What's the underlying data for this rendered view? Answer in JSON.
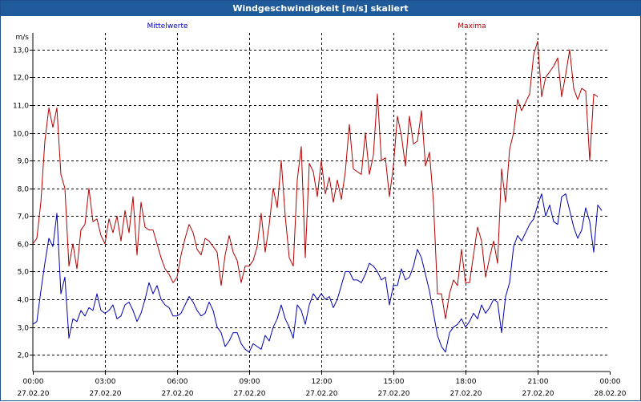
{
  "window": {
    "title": "Windgeschwindigkeit [m/s] skaliert"
  },
  "colors": {
    "mittel": "#0000b4",
    "maxima": "#b40000",
    "titlebar": "#1f5b9b"
  },
  "chart_data": {
    "type": "line",
    "title": "Windgeschwindigkeit [m/s] skaliert",
    "ylabel": "m/s",
    "ylim": [
      1.4,
      13.6
    ],
    "yticks": [
      2.0,
      3.0,
      4.0,
      5.0,
      6.0,
      7.0,
      8.0,
      9.0,
      10.0,
      11.0,
      12.0,
      13.0
    ],
    "ytick_labels": [
      "2,0",
      "3,0",
      "4,0",
      "5,0",
      "6,0",
      "7,0",
      "8,0",
      "9,0",
      "10,0",
      "11,0",
      "12,0",
      "13,0"
    ],
    "xlim": [
      "2020-02-27T00:00",
      "2020-02-28T00:00"
    ],
    "xticks": [
      {
        "time": "00:00",
        "date": "27.02.20"
      },
      {
        "time": "03:00",
        "date": "27.02.20"
      },
      {
        "time": "06:00",
        "date": "27.02.20"
      },
      {
        "time": "09:00",
        "date": "27.02.20"
      },
      {
        "time": "12:00",
        "date": "27.02.20"
      },
      {
        "time": "15:00",
        "date": "27.02.20"
      },
      {
        "time": "18:00",
        "date": "27.02.20"
      },
      {
        "time": "21:00",
        "date": "27.02.20"
      },
      {
        "time": "00:00",
        "date": "28.02.20"
      }
    ],
    "grid": true,
    "series": [
      {
        "name": "Mittelwerte",
        "color": "#0000b4",
        "points": [
          [
            "00:00",
            3.1
          ],
          [
            "00:10",
            3.2
          ],
          [
            "00:20",
            4.3
          ],
          [
            "00:30",
            5.3
          ],
          [
            "00:40",
            6.2
          ],
          [
            "00:50",
            5.9
          ],
          [
            "01:00",
            7.1
          ],
          [
            "01:10",
            4.2
          ],
          [
            "01:20",
            4.8
          ],
          [
            "01:30",
            2.6
          ],
          [
            "01:40",
            3.3
          ],
          [
            "01:50",
            3.2
          ],
          [
            "02:00",
            3.6
          ],
          [
            "02:10",
            3.4
          ],
          [
            "02:20",
            3.7
          ],
          [
            "02:30",
            3.6
          ],
          [
            "02:40",
            4.2
          ],
          [
            "02:50",
            3.6
          ],
          [
            "03:00",
            3.5
          ],
          [
            "03:10",
            3.6
          ],
          [
            "03:20",
            3.8
          ],
          [
            "03:30",
            3.3
          ],
          [
            "03:40",
            3.4
          ],
          [
            "03:50",
            3.8
          ],
          [
            "04:00",
            3.9
          ],
          [
            "04:10",
            3.6
          ],
          [
            "04:20",
            3.2
          ],
          [
            "04:30",
            3.5
          ],
          [
            "04:40",
            4.0
          ],
          [
            "04:50",
            4.6
          ],
          [
            "05:00",
            4.2
          ],
          [
            "05:10",
            4.5
          ],
          [
            "05:20",
            4.0
          ],
          [
            "05:30",
            3.8
          ],
          [
            "05:40",
            3.7
          ],
          [
            "05:50",
            3.4
          ],
          [
            "06:00",
            3.4
          ],
          [
            "06:10",
            3.5
          ],
          [
            "06:20",
            3.8
          ],
          [
            "06:30",
            4.1
          ],
          [
            "06:40",
            3.9
          ],
          [
            "06:50",
            3.6
          ],
          [
            "07:00",
            3.4
          ],
          [
            "07:10",
            3.5
          ],
          [
            "07:20",
            3.9
          ],
          [
            "07:30",
            3.6
          ],
          [
            "07:40",
            3.0
          ],
          [
            "07:50",
            2.8
          ],
          [
            "08:00",
            2.3
          ],
          [
            "08:10",
            2.5
          ],
          [
            "08:20",
            2.8
          ],
          [
            "08:30",
            2.8
          ],
          [
            "08:40",
            2.4
          ],
          [
            "08:50",
            2.2
          ],
          [
            "09:00",
            2.1
          ],
          [
            "09:10",
            2.4
          ],
          [
            "09:20",
            2.3
          ],
          [
            "09:30",
            2.2
          ],
          [
            "09:40",
            2.7
          ],
          [
            "09:50",
            2.5
          ],
          [
            "10:00",
            3.0
          ],
          [
            "10:10",
            3.3
          ],
          [
            "10:20",
            3.8
          ],
          [
            "10:30",
            3.3
          ],
          [
            "10:40",
            3.0
          ],
          [
            "10:50",
            2.6
          ],
          [
            "11:00",
            3.8
          ],
          [
            "11:10",
            3.6
          ],
          [
            "11:20",
            3.1
          ],
          [
            "11:30",
            3.8
          ],
          [
            "11:40",
            4.2
          ],
          [
            "11:50",
            4.0
          ],
          [
            "12:00",
            4.2
          ],
          [
            "12:10",
            4.0
          ],
          [
            "12:20",
            4.1
          ],
          [
            "12:30",
            3.7
          ],
          [
            "12:40",
            4.0
          ],
          [
            "12:50",
            4.5
          ],
          [
            "13:00",
            5.0
          ],
          [
            "13:10",
            5.0
          ],
          [
            "13:20",
            4.7
          ],
          [
            "13:30",
            4.7
          ],
          [
            "13:40",
            4.6
          ],
          [
            "13:50",
            4.9
          ],
          [
            "14:00",
            5.3
          ],
          [
            "14:10",
            5.2
          ],
          [
            "14:20",
            5.0
          ],
          [
            "14:30",
            4.7
          ],
          [
            "14:40",
            4.8
          ],
          [
            "14:50",
            3.8
          ],
          [
            "15:00",
            4.5
          ],
          [
            "15:10",
            4.5
          ],
          [
            "15:20",
            5.1
          ],
          [
            "15:30",
            4.7
          ],
          [
            "15:40",
            4.8
          ],
          [
            "15:50",
            5.2
          ],
          [
            "16:00",
            5.8
          ],
          [
            "16:10",
            5.5
          ],
          [
            "16:20",
            4.9
          ],
          [
            "16:30",
            4.3
          ],
          [
            "16:40",
            3.5
          ],
          [
            "16:50",
            2.7
          ],
          [
            "17:00",
            2.3
          ],
          [
            "17:10",
            2.1
          ],
          [
            "17:20",
            2.8
          ],
          [
            "17:30",
            3.0
          ],
          [
            "17:40",
            3.1
          ],
          [
            "17:50",
            3.3
          ],
          [
            "18:00",
            3.0
          ],
          [
            "18:10",
            3.2
          ],
          [
            "18:20",
            3.5
          ],
          [
            "18:30",
            3.3
          ],
          [
            "18:40",
            3.8
          ],
          [
            "18:50",
            3.5
          ],
          [
            "19:00",
            3.7
          ],
          [
            "19:10",
            4.0
          ],
          [
            "19:20",
            3.9
          ],
          [
            "19:30",
            2.8
          ],
          [
            "19:40",
            4.1
          ],
          [
            "19:50",
            4.6
          ],
          [
            "20:00",
            5.9
          ],
          [
            "20:10",
            6.3
          ],
          [
            "20:20",
            6.1
          ],
          [
            "20:30",
            6.4
          ],
          [
            "20:40",
            6.7
          ],
          [
            "20:50",
            6.9
          ],
          [
            "21:00",
            7.4
          ],
          [
            "21:10",
            7.8
          ],
          [
            "21:20",
            7.0
          ],
          [
            "21:30",
            7.4
          ],
          [
            "21:40",
            6.8
          ],
          [
            "21:50",
            6.7
          ],
          [
            "22:00",
            7.7
          ],
          [
            "22:10",
            7.8
          ],
          [
            "22:20",
            7.2
          ],
          [
            "22:30",
            6.6
          ],
          [
            "22:40",
            6.2
          ],
          [
            "22:50",
            6.5
          ],
          [
            "23:00",
            7.3
          ],
          [
            "23:10",
            6.8
          ],
          [
            "23:20",
            5.7
          ],
          [
            "23:30",
            7.4
          ],
          [
            "23:40",
            7.2
          ]
        ]
      },
      {
        "name": "Maxima",
        "color": "#b40000",
        "points": [
          [
            "00:00",
            6.0
          ],
          [
            "00:10",
            6.2
          ],
          [
            "00:20",
            7.5
          ],
          [
            "00:30",
            9.7
          ],
          [
            "00:40",
            10.9
          ],
          [
            "00:50",
            10.2
          ],
          [
            "01:00",
            10.9
          ],
          [
            "01:10",
            8.5
          ],
          [
            "01:20",
            8.0
          ],
          [
            "01:30",
            5.2
          ],
          [
            "01:40",
            6.0
          ],
          [
            "01:50",
            5.1
          ],
          [
            "02:00",
            6.5
          ],
          [
            "02:10",
            6.7
          ],
          [
            "02:20",
            8.0
          ],
          [
            "02:30",
            6.8
          ],
          [
            "02:40",
            6.9
          ],
          [
            "02:50",
            6.3
          ],
          [
            "03:00",
            6.0
          ],
          [
            "03:10",
            6.9
          ],
          [
            "03:20",
            6.4
          ],
          [
            "03:30",
            7.0
          ],
          [
            "03:40",
            6.1
          ],
          [
            "03:50",
            7.2
          ],
          [
            "04:00",
            6.4
          ],
          [
            "04:10",
            7.7
          ],
          [
            "04:20",
            5.6
          ],
          [
            "04:30",
            7.5
          ],
          [
            "04:40",
            6.6
          ],
          [
            "04:50",
            6.5
          ],
          [
            "05:00",
            6.5
          ],
          [
            "05:10",
            6.0
          ],
          [
            "05:20",
            5.5
          ],
          [
            "05:30",
            5.1
          ],
          [
            "05:40",
            4.9
          ],
          [
            "05:50",
            4.6
          ],
          [
            "06:00",
            4.8
          ],
          [
            "06:10",
            5.6
          ],
          [
            "06:20",
            6.2
          ],
          [
            "06:30",
            6.7
          ],
          [
            "06:40",
            6.4
          ],
          [
            "06:50",
            5.8
          ],
          [
            "07:00",
            5.6
          ],
          [
            "07:10",
            6.2
          ],
          [
            "07:20",
            6.1
          ],
          [
            "07:30",
            5.9
          ],
          [
            "07:40",
            5.7
          ],
          [
            "07:50",
            4.5
          ],
          [
            "08:00",
            5.6
          ],
          [
            "08:10",
            6.3
          ],
          [
            "08:20",
            5.7
          ],
          [
            "08:30",
            5.4
          ],
          [
            "08:40",
            4.6
          ],
          [
            "08:50",
            5.2
          ],
          [
            "09:00",
            5.2
          ],
          [
            "09:10",
            5.4
          ],
          [
            "09:20",
            5.9
          ],
          [
            "09:30",
            7.1
          ],
          [
            "09:40",
            5.7
          ],
          [
            "09:50",
            6.7
          ],
          [
            "10:00",
            8.0
          ],
          [
            "10:10",
            7.3
          ],
          [
            "10:20",
            9.0
          ],
          [
            "10:30",
            7.0
          ],
          [
            "10:40",
            5.5
          ],
          [
            "10:50",
            5.2
          ],
          [
            "11:00",
            8.3
          ],
          [
            "11:10",
            9.5
          ],
          [
            "11:20",
            5.5
          ],
          [
            "11:30",
            8.9
          ],
          [
            "11:40",
            8.6
          ],
          [
            "11:50",
            7.7
          ],
          [
            "12:00",
            9.0
          ],
          [
            "12:10",
            7.8
          ],
          [
            "12:20",
            8.4
          ],
          [
            "12:30",
            7.5
          ],
          [
            "12:40",
            8.3
          ],
          [
            "12:50",
            7.6
          ],
          [
            "13:00",
            8.6
          ],
          [
            "13:10",
            10.3
          ],
          [
            "13:20",
            8.7
          ],
          [
            "13:30",
            8.6
          ],
          [
            "13:40",
            8.5
          ],
          [
            "13:50",
            10.0
          ],
          [
            "14:00",
            8.5
          ],
          [
            "14:10",
            9.2
          ],
          [
            "14:20",
            11.4
          ],
          [
            "14:30",
            9.0
          ],
          [
            "14:40",
            9.1
          ],
          [
            "14:50",
            7.7
          ],
          [
            "15:00",
            8.8
          ],
          [
            "15:10",
            10.6
          ],
          [
            "15:20",
            9.9
          ],
          [
            "15:30",
            8.8
          ],
          [
            "15:40",
            10.6
          ],
          [
            "15:50",
            9.6
          ],
          [
            "16:00",
            9.7
          ],
          [
            "16:10",
            10.8
          ],
          [
            "16:20",
            8.8
          ],
          [
            "16:30",
            9.3
          ],
          [
            "16:40",
            7.5
          ],
          [
            "16:50",
            4.2
          ],
          [
            "17:00",
            4.2
          ],
          [
            "17:10",
            3.3
          ],
          [
            "17:20",
            4.2
          ],
          [
            "17:30",
            4.7
          ],
          [
            "17:40",
            4.5
          ],
          [
            "17:50",
            5.8
          ],
          [
            "18:00",
            4.6
          ],
          [
            "18:10",
            4.6
          ],
          [
            "18:20",
            5.6
          ],
          [
            "18:30",
            6.6
          ],
          [
            "18:40",
            6.1
          ],
          [
            "18:50",
            4.8
          ],
          [
            "19:00",
            5.5
          ],
          [
            "19:10",
            6.1
          ],
          [
            "19:20",
            5.3
          ],
          [
            "19:30",
            8.7
          ],
          [
            "19:40",
            7.5
          ],
          [
            "19:50",
            9.4
          ],
          [
            "20:00",
            10.0
          ],
          [
            "20:10",
            11.2
          ],
          [
            "20:20",
            10.8
          ],
          [
            "20:30",
            11.1
          ],
          [
            "20:40",
            11.4
          ],
          [
            "20:50",
            12.8
          ],
          [
            "21:00",
            13.3
          ],
          [
            "21:10",
            11.3
          ],
          [
            "21:20",
            12.0
          ],
          [
            "21:30",
            12.2
          ],
          [
            "21:40",
            12.4
          ],
          [
            "21:50",
            12.7
          ],
          [
            "22:00",
            11.3
          ],
          [
            "22:10",
            12.1
          ],
          [
            "22:20",
            13.0
          ],
          [
            "22:30",
            11.6
          ],
          [
            "22:40",
            11.2
          ],
          [
            "22:50",
            11.6
          ],
          [
            "23:00",
            11.5
          ],
          [
            "23:10",
            9.0
          ],
          [
            "23:20",
            11.4
          ],
          [
            "23:30",
            11.3
          ]
        ]
      }
    ]
  }
}
